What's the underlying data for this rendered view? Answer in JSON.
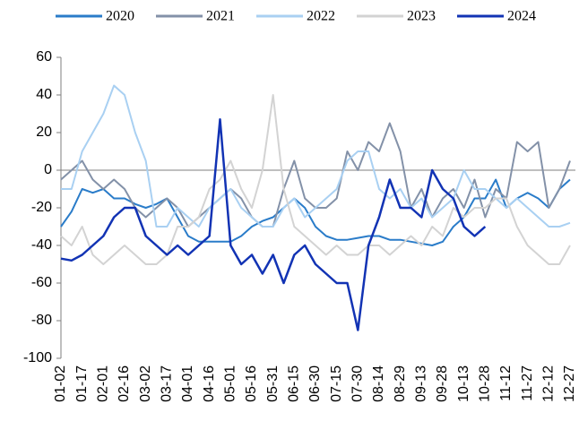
{
  "chart_data": {
    "type": "line",
    "categories": [
      "01-02",
      null,
      "01-17",
      null,
      "02-01",
      null,
      "02-16",
      null,
      "03-02",
      null,
      "03-17",
      null,
      "04-01",
      null,
      "04-16",
      null,
      "05-01",
      null,
      "05-16",
      null,
      "05-31",
      null,
      "06-15",
      null,
      "06-30",
      null,
      "07-15",
      null,
      "07-30",
      null,
      "08-14",
      null,
      "08-29",
      null,
      "09-13",
      null,
      "09-28",
      null,
      "10-13",
      null,
      "10-28",
      null,
      "11-12",
      null,
      "11-27",
      null,
      "12-12",
      null,
      "12-27"
    ],
    "series": [
      {
        "name": "2020",
        "color": "#2a7cc9",
        "values": [
          -30,
          -22,
          -10,
          -12,
          -10,
          -15,
          -15,
          -18,
          -20,
          -18,
          -15,
          -25,
          -35,
          -38,
          -38,
          -38,
          -38,
          -35,
          -30,
          -27,
          -25,
          -20,
          -15,
          -20,
          -30,
          -35,
          -37,
          -37,
          -36,
          -35,
          -35,
          -37,
          -37,
          -38,
          -39,
          -40,
          -38,
          -30,
          -25,
          -15,
          -15,
          -5,
          -20,
          -15,
          -12,
          -15,
          -20,
          -10,
          -5
        ]
      },
      {
        "name": "2021",
        "color": "#8391a8",
        "values": [
          -5,
          0,
          5,
          -5,
          -10,
          -5,
          -10,
          -20,
          -25,
          -20,
          -15,
          -20,
          -30,
          -25,
          -20,
          -15,
          -10,
          -15,
          -25,
          -30,
          -30,
          -10,
          5,
          -15,
          -20,
          -20,
          -15,
          10,
          0,
          15,
          10,
          25,
          10,
          -20,
          -10,
          -25,
          -15,
          -10,
          -20,
          -5,
          -25,
          -10,
          -15,
          15,
          10,
          15,
          -20,
          -10,
          5
        ]
      },
      {
        "name": "2022",
        "color": "#a9d0f2",
        "values": [
          -10,
          -10,
          10,
          20,
          30,
          45,
          40,
          20,
          5,
          -30,
          -30,
          -20,
          -25,
          -30,
          -20,
          -15,
          -10,
          -20,
          -25,
          -30,
          -30,
          -20,
          -15,
          -25,
          -20,
          -15,
          -10,
          5,
          10,
          10,
          -10,
          -15,
          -10,
          -20,
          -15,
          -25,
          -20,
          -15,
          0,
          -10,
          -10,
          -15,
          -20,
          -15,
          -20,
          -25,
          -30,
          -30,
          -28
        ]
      },
      {
        "name": "2023",
        "color": "#d3d3d3",
        "values": [
          -35,
          -40,
          -30,
          -45,
          -50,
          -45,
          -40,
          -45,
          -50,
          -50,
          -45,
          -30,
          -30,
          -25,
          -10,
          -5,
          5,
          -10,
          -20,
          0,
          40,
          -10,
          -30,
          -35,
          -40,
          -45,
          -40,
          -45,
          -45,
          -40,
          -40,
          -45,
          -40,
          -35,
          -40,
          -30,
          -35,
          -20,
          -25,
          -20,
          -20,
          -15,
          -15,
          -30,
          -40,
          -45,
          -50,
          -50,
          -40
        ]
      },
      {
        "name": "2024",
        "color": "#1233b4",
        "values": [
          -47,
          -48,
          -45,
          -40,
          -35,
          -25,
          -20,
          -20,
          -35,
          -40,
          -45,
          -40,
          -45,
          -40,
          -35,
          27,
          -40,
          -50,
          -45,
          -55,
          -45,
          -60,
          -45,
          -40,
          -50,
          -55,
          -60,
          -60,
          -85,
          -40,
          -25,
          -5,
          -20,
          -20,
          -25,
          0,
          -10,
          -15,
          -30,
          -35,
          -30,
          null,
          null,
          null,
          null,
          null,
          null,
          null,
          null
        ]
      }
    ],
    "ylim": [
      -100,
      60
    ],
    "yticks": [
      -100,
      -80,
      -60,
      -40,
      -20,
      0,
      20,
      40,
      60
    ]
  }
}
